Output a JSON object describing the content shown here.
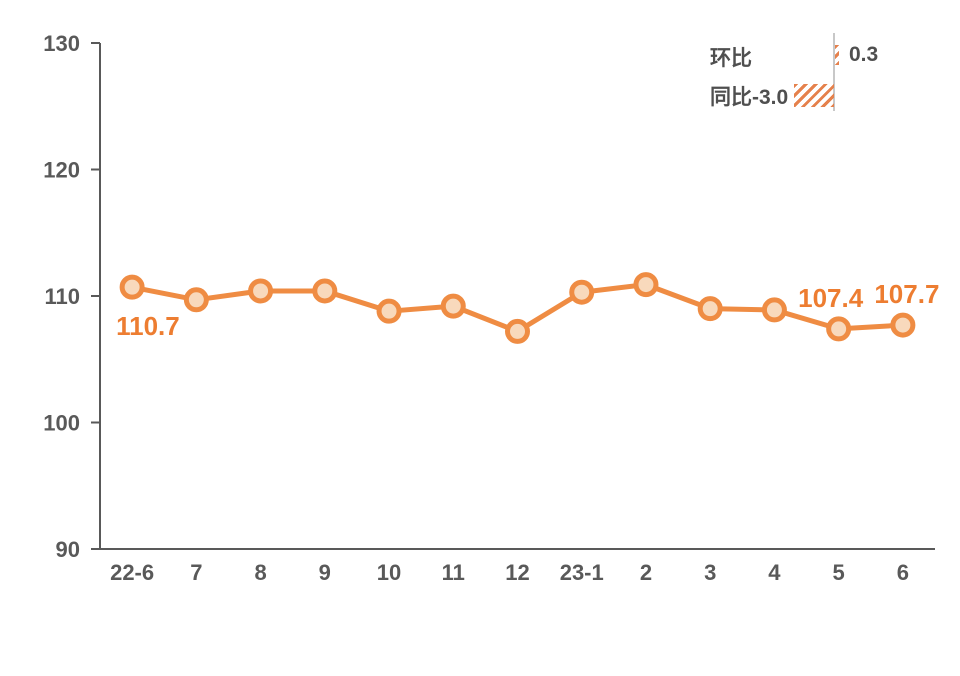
{
  "chart_data": {
    "type": "line",
    "x": [
      "22-6",
      "7",
      "8",
      "9",
      "10",
      "11",
      "12",
      "23-1",
      "2",
      "3",
      "4",
      "5",
      "6"
    ],
    "values": [
      110.7,
      109.7,
      110.4,
      110.4,
      108.8,
      109.2,
      107.2,
      110.3,
      110.9,
      109.0,
      108.9,
      107.4,
      107.7
    ],
    "ylim": [
      90,
      130
    ],
    "yticks": [
      90,
      100,
      110,
      120,
      130
    ],
    "grid": false,
    "point_labels": [
      {
        "index": 0,
        "text": "110.7",
        "position": "below",
        "dx": 0
      },
      {
        "index": 11,
        "text": "107.4",
        "position": "above",
        "dx": -8
      },
      {
        "index": 12,
        "text": "107.7",
        "position": "above",
        "dx": 4
      }
    ],
    "legend": {
      "position": "top-right",
      "rows": [
        {
          "label": "环比",
          "bar_value": 0.3,
          "value_label": "0.3"
        },
        {
          "label": "同比-3.0",
          "bar_value": -3.0,
          "value_label": ""
        }
      ]
    },
    "colors": {
      "series": "#EF8C43",
      "marker_fill": "#F8D9BC",
      "data_label": "#ED7D31",
      "axis": "#595959",
      "tick_text": "#595959",
      "legend_text": "#4F4F4F",
      "hatch": "#E5814C",
      "legend_axis_line": "#C8C8C8",
      "background": "#FFFFFF"
    }
  }
}
